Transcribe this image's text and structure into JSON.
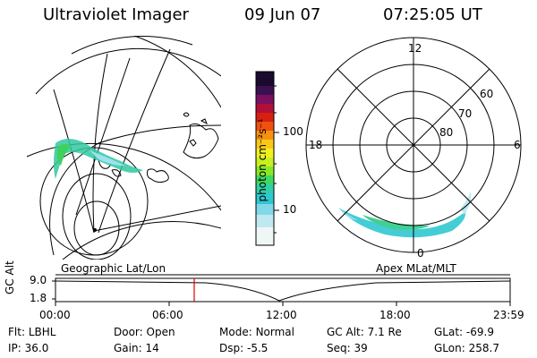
{
  "header": {
    "title": "Ultraviolet Imager",
    "date": "09 Jun 07",
    "time": "07:25:05 UT"
  },
  "left_map": {
    "label": "Geographic Lat/Lon"
  },
  "polar_plot": {
    "label": "Apex MLat/MLT",
    "mlt_labels": {
      "top": "12",
      "right": "6",
      "bottom": "0",
      "left": "18"
    },
    "ring_labels": [
      "60",
      "70",
      "80"
    ]
  },
  "colorbar": {
    "unit_label": "photon cm⁻²s⁻¹",
    "ticks": [
      "100",
      "10"
    ],
    "colors": [
      "#1a0a2e",
      "#5a1060",
      "#a01040",
      "#d82010",
      "#f07010",
      "#f8c010",
      "#f0f020",
      "#c8f020",
      "#80e830",
      "#40d890",
      "#30c8d0",
      "#a0e0f0",
      "#f0f8f8"
    ]
  },
  "timeline": {
    "ylabel": "GC Alt",
    "y_ticks": [
      "9.0",
      "1.8"
    ],
    "x_ticks": [
      "00:00",
      "06:00",
      "12:00",
      "18:00",
      "23:59"
    ],
    "cursor_color": "#e00000"
  },
  "status": {
    "row1": [
      {
        "key": "Flt:",
        "value": "LBHL"
      },
      {
        "key": "Door:",
        "value": "Open"
      },
      {
        "key": "Mode:",
        "value": "Normal"
      },
      {
        "key": "GC Alt:",
        "value": "7.1 Re"
      },
      {
        "key": "GLat:",
        "value": "-69.9"
      }
    ],
    "row2": [
      {
        "key": "IP:",
        "value": "36.0"
      },
      {
        "key": "Gain:",
        "value": "14"
      },
      {
        "key": "Dsp:",
        "value": "-5.5"
      },
      {
        "key": "Seq:",
        "value": "39"
      },
      {
        "key": "GLon:",
        "value": "258.7"
      }
    ]
  }
}
